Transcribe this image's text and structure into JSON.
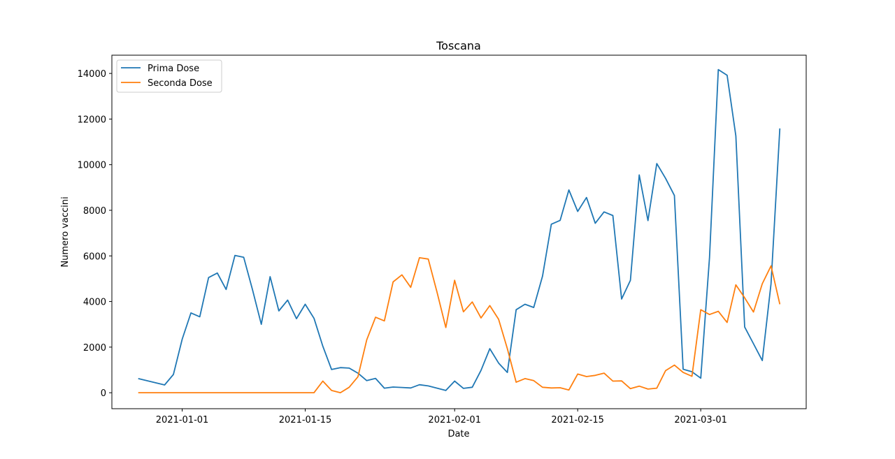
{
  "chart_data": {
    "type": "line",
    "title": "Toscana",
    "xlabel": "Date",
    "ylabel": "Numero vaccini",
    "xlim": [
      "2020-12-24",
      "2021-03-13"
    ],
    "ylim": [
      -700,
      14800
    ],
    "x_ticks": [
      "2021-01-01",
      "2021-01-15",
      "2021-02-01",
      "2021-02-15",
      "2021-03-01"
    ],
    "y_ticks": [
      0,
      2000,
      4000,
      6000,
      8000,
      10000,
      12000,
      14000
    ],
    "grid": false,
    "legend_position": "top-left",
    "series": [
      {
        "name": "Prima Dose",
        "color": "#1f77b4",
        "points": [
          [
            "2020-12-27",
            620
          ],
          [
            "2020-12-30",
            340
          ],
          [
            "2020-12-31",
            800
          ],
          [
            "2021-01-01",
            2350
          ],
          [
            "2021-01-02",
            3500
          ],
          [
            "2021-01-03",
            3330
          ],
          [
            "2021-01-04",
            5050
          ],
          [
            "2021-01-05",
            5250
          ],
          [
            "2021-01-06",
            4530
          ],
          [
            "2021-01-07",
            6020
          ],
          [
            "2021-01-08",
            5940
          ],
          [
            "2021-01-09",
            4520
          ],
          [
            "2021-01-10",
            3000
          ],
          [
            "2021-01-11",
            5090
          ],
          [
            "2021-01-12",
            3590
          ],
          [
            "2021-01-13",
            4060
          ],
          [
            "2021-01-14",
            3250
          ],
          [
            "2021-01-15",
            3880
          ],
          [
            "2021-01-16",
            3260
          ],
          [
            "2021-01-17",
            2040
          ],
          [
            "2021-01-18",
            1020
          ],
          [
            "2021-01-19",
            1100
          ],
          [
            "2021-01-20",
            1080
          ],
          [
            "2021-01-21",
            860
          ],
          [
            "2021-01-22",
            530
          ],
          [
            "2021-01-23",
            630
          ],
          [
            "2021-01-24",
            200
          ],
          [
            "2021-01-25",
            250
          ],
          [
            "2021-01-26",
            230
          ],
          [
            "2021-01-27",
            210
          ],
          [
            "2021-01-28",
            350
          ],
          [
            "2021-01-29",
            300
          ],
          [
            "2021-01-30",
            200
          ],
          [
            "2021-01-31",
            100
          ],
          [
            "2021-02-01",
            510
          ],
          [
            "2021-02-02",
            190
          ],
          [
            "2021-02-03",
            240
          ],
          [
            "2021-02-04",
            980
          ],
          [
            "2021-02-05",
            1930
          ],
          [
            "2021-02-06",
            1300
          ],
          [
            "2021-02-07",
            890
          ],
          [
            "2021-02-08",
            3640
          ],
          [
            "2021-02-09",
            3880
          ],
          [
            "2021-02-10",
            3740
          ],
          [
            "2021-02-11",
            5110
          ],
          [
            "2021-02-12",
            7390
          ],
          [
            "2021-02-13",
            7560
          ],
          [
            "2021-02-14",
            8890
          ],
          [
            "2021-02-15",
            7950
          ],
          [
            "2021-02-16",
            8560
          ],
          [
            "2021-02-17",
            7430
          ],
          [
            "2021-02-18",
            7930
          ],
          [
            "2021-02-19",
            7770
          ],
          [
            "2021-02-20",
            4110
          ],
          [
            "2021-02-21",
            4930
          ],
          [
            "2021-02-22",
            9550
          ],
          [
            "2021-02-23",
            7550
          ],
          [
            "2021-02-24",
            10050
          ],
          [
            "2021-02-25",
            9400
          ],
          [
            "2021-02-26",
            8650
          ],
          [
            "2021-02-27",
            1030
          ],
          [
            "2021-02-28",
            920
          ],
          [
            "2021-03-01",
            640
          ],
          [
            "2021-03-02",
            5920
          ],
          [
            "2021-03-03",
            14170
          ],
          [
            "2021-03-04",
            13920
          ],
          [
            "2021-03-05",
            11260
          ],
          [
            "2021-03-06",
            2880
          ],
          [
            "2021-03-07",
            2150
          ],
          [
            "2021-03-08",
            1410
          ],
          [
            "2021-03-09",
            4780
          ],
          [
            "2021-03-10",
            11590
          ]
        ]
      },
      {
        "name": "Seconda Dose",
        "color": "#ff7f0e",
        "points": [
          [
            "2020-12-27",
            0
          ],
          [
            "2021-01-16",
            0
          ],
          [
            "2021-01-17",
            510
          ],
          [
            "2021-01-18",
            100
          ],
          [
            "2021-01-19",
            0
          ],
          [
            "2021-01-20",
            240
          ],
          [
            "2021-01-21",
            700
          ],
          [
            "2021-01-22",
            2320
          ],
          [
            "2021-01-23",
            3310
          ],
          [
            "2021-01-24",
            3150
          ],
          [
            "2021-01-25",
            4860
          ],
          [
            "2021-01-26",
            5170
          ],
          [
            "2021-01-27",
            4620
          ],
          [
            "2021-01-28",
            5920
          ],
          [
            "2021-01-29",
            5860
          ],
          [
            "2021-01-30",
            4400
          ],
          [
            "2021-01-31",
            2860
          ],
          [
            "2021-02-01",
            4930
          ],
          [
            "2021-02-02",
            3550
          ],
          [
            "2021-02-03",
            3980
          ],
          [
            "2021-02-04",
            3280
          ],
          [
            "2021-02-05",
            3820
          ],
          [
            "2021-02-06",
            3220
          ],
          [
            "2021-02-07",
            1930
          ],
          [
            "2021-02-08",
            460
          ],
          [
            "2021-02-09",
            620
          ],
          [
            "2021-02-10",
            530
          ],
          [
            "2021-02-11",
            240
          ],
          [
            "2021-02-12",
            210
          ],
          [
            "2021-02-13",
            220
          ],
          [
            "2021-02-14",
            120
          ],
          [
            "2021-02-15",
            820
          ],
          [
            "2021-02-16",
            710
          ],
          [
            "2021-02-17",
            760
          ],
          [
            "2021-02-18",
            860
          ],
          [
            "2021-02-19",
            510
          ],
          [
            "2021-02-20",
            520
          ],
          [
            "2021-02-21",
            180
          ],
          [
            "2021-02-22",
            290
          ],
          [
            "2021-02-23",
            160
          ],
          [
            "2021-02-24",
            200
          ],
          [
            "2021-02-25",
            970
          ],
          [
            "2021-02-26",
            1210
          ],
          [
            "2021-02-27",
            890
          ],
          [
            "2021-02-28",
            720
          ],
          [
            "2021-03-01",
            3640
          ],
          [
            "2021-03-02",
            3430
          ],
          [
            "2021-03-03",
            3570
          ],
          [
            "2021-03-04",
            3080
          ],
          [
            "2021-03-05",
            4730
          ],
          [
            "2021-03-06",
            4160
          ],
          [
            "2021-03-07",
            3540
          ],
          [
            "2021-03-08",
            4780
          ],
          [
            "2021-03-09",
            5560
          ],
          [
            "2021-03-10",
            3880
          ]
        ]
      }
    ]
  }
}
